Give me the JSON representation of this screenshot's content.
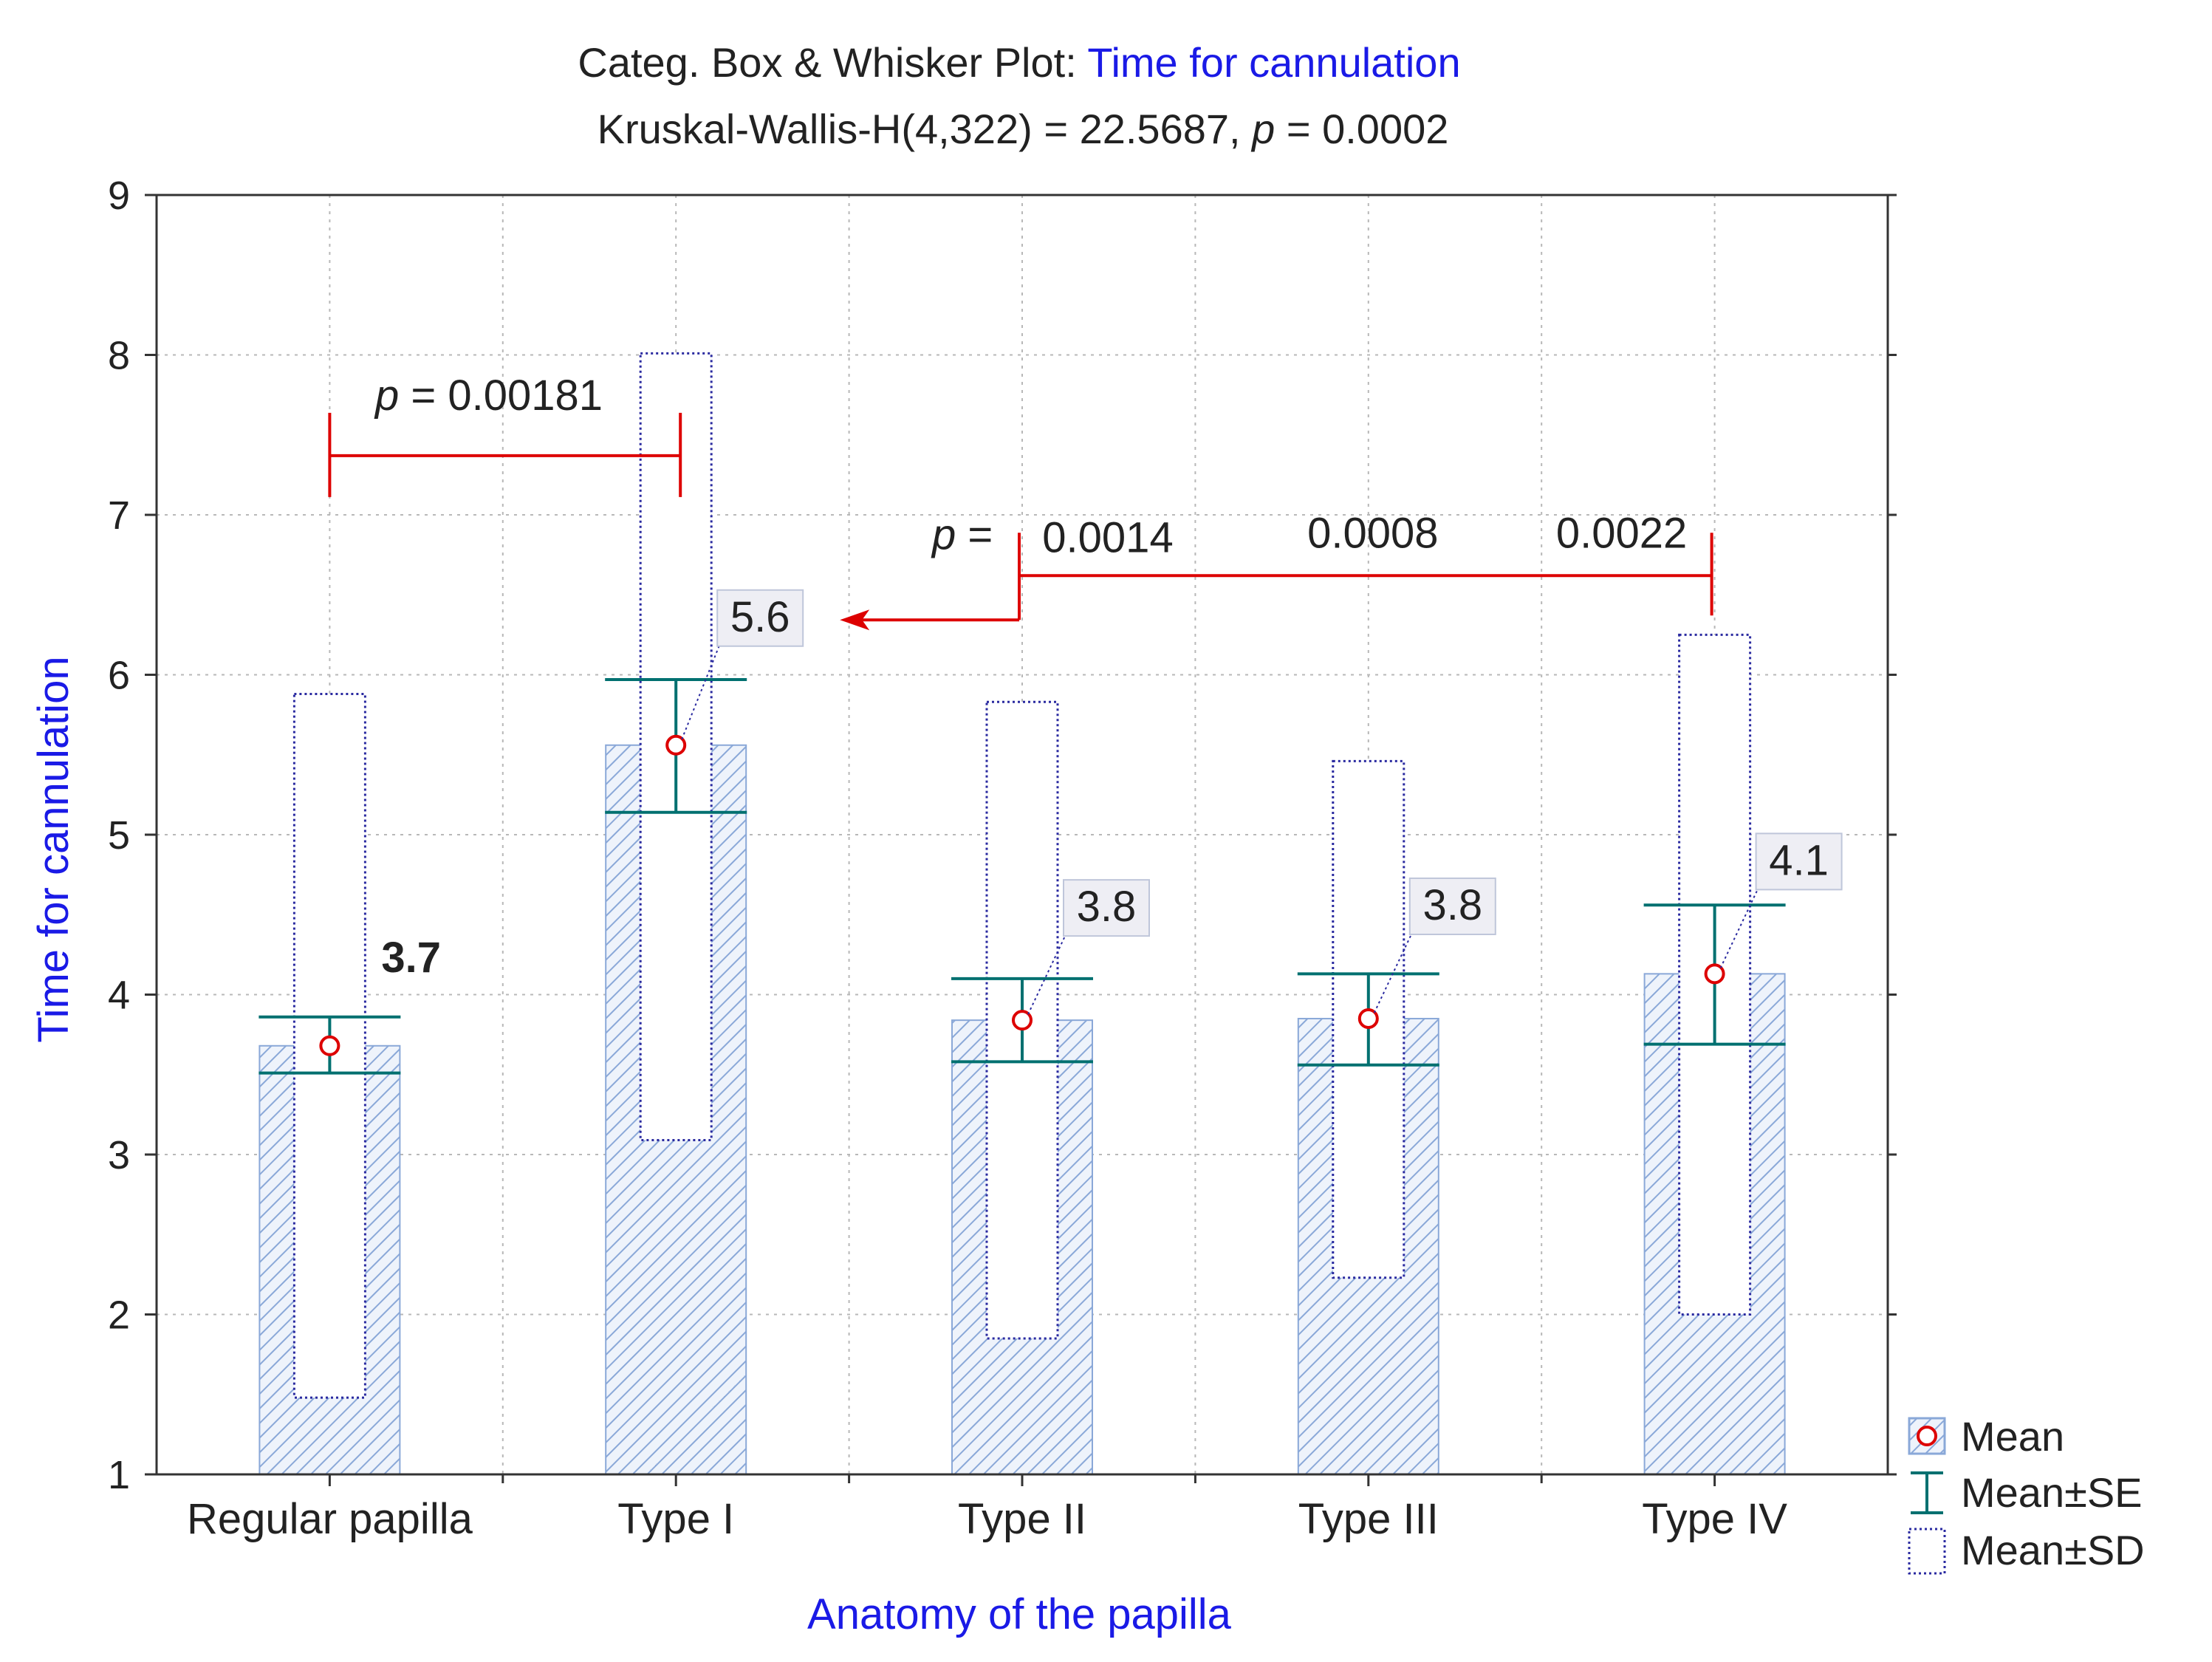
{
  "chart_data": {
    "type": "box-whisker",
    "title_prefix": "Categ. Box & Whisker Plot:",
    "title_variable": "Time for cannulation",
    "subtitle_prefix": "Kruskal-Wallis-H(4,322) = 22.5687,",
    "subtitle_p": "p",
    "subtitle_suffix": "= 0.0002",
    "xlabel": "Anatomy of the papilla",
    "ylabel": "Time for cannulation",
    "ylim": [
      1,
      9
    ],
    "yticks": [
      "1",
      "2",
      "3",
      "4",
      "5",
      "6",
      "7",
      "8",
      "9"
    ],
    "grid": true,
    "categories": [
      "Regular papilla",
      "Type I",
      "Type II",
      "Type III",
      "Type IV"
    ],
    "mean": [
      3.68,
      5.56,
      3.84,
      3.85,
      4.13
    ],
    "se_low": [
      3.51,
      5.14,
      3.58,
      3.56,
      3.69
    ],
    "se_high": [
      3.86,
      5.97,
      4.1,
      4.13,
      4.56
    ],
    "sd_low": [
      1.48,
      3.09,
      1.85,
      2.23,
      2.0
    ],
    "sd_high": [
      5.88,
      8.01,
      5.83,
      5.46,
      6.25
    ],
    "mean_labels": [
      "3.7",
      "5.6",
      "3.8",
      "3.8",
      "4.1"
    ],
    "annotations": {
      "p_symbol": "p",
      "eq": "=",
      "comparison_1": {
        "from": "Regular papilla",
        "to": "Type I",
        "y": 7.37,
        "p_value": "0.00181"
      },
      "comparison_2": {
        "from": "Type II",
        "to": "Type IV",
        "y": 6.62,
        "target": "Type I",
        "p_values": [
          "0.0014",
          "0.0008",
          "0.0022"
        ]
      }
    },
    "legend": {
      "position": "bottom-right",
      "items": [
        "Mean",
        "Mean±SE",
        "Mean±SD"
      ]
    },
    "colors": {
      "title_accent": "#1a1ae6",
      "axis_label": "#1a1ae6",
      "mean_marker": "#dd0000",
      "se_whisker": "#007070",
      "sd_box": "#2a2aa0",
      "bar_hatch": "#8aa8d8",
      "annotation": "#dd0000"
    }
  }
}
